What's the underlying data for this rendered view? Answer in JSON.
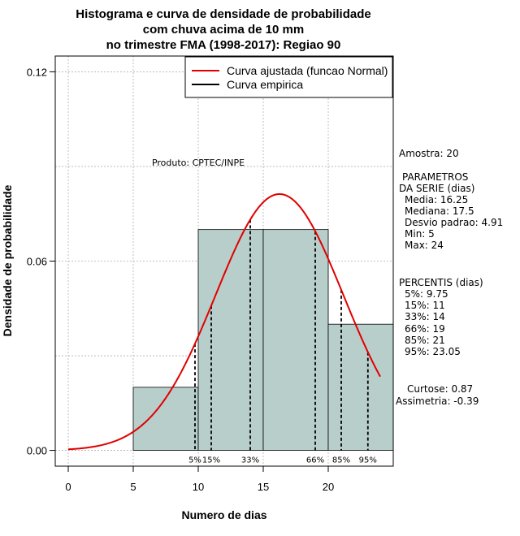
{
  "chart_data": {
    "type": "bar",
    "title_lines": [
      "Histograma e curva de densidade de probabilidade",
      "com chuva acima de 10 mm",
      "no trimestre FMA (1998-2017): Regiao 90"
    ],
    "xlabel": "Numero de dias",
    "ylabel": "Densidade de probabilidade",
    "xlim": [
      -1,
      25
    ],
    "ylim": [
      -0.005,
      0.125
    ],
    "x_ticks": [
      0,
      5,
      10,
      15,
      20
    ],
    "y_ticks": [
      0.0,
      0.06,
      0.12
    ],
    "y_tick_labels": [
      "0.00",
      "0.06",
      "0.12"
    ],
    "grid": true,
    "histogram": {
      "bins": [
        {
          "start": 5,
          "end": 10,
          "density": 0.02
        },
        {
          "start": 10,
          "end": 15,
          "density": 0.07
        },
        {
          "start": 15,
          "end": 20,
          "density": 0.07
        },
        {
          "start": 20,
          "end": 25,
          "density": 0.04
        }
      ],
      "color": "#b8cecb"
    },
    "normal_curve": {
      "name": "Curva ajustada (funcao Normal)",
      "mean": 16.25,
      "sd": 4.91,
      "x_range": [
        0,
        24
      ],
      "color": "#e00000"
    },
    "empirical_legend": "Curva empirica",
    "percentile_lines": [
      {
        "label": "5%",
        "x": 9.75
      },
      {
        "label": "15%",
        "x": 11
      },
      {
        "label": "33%",
        "x": 14
      },
      {
        "label": "66%",
        "x": 19
      },
      {
        "label": "85%",
        "x": 21
      },
      {
        "label": "95%",
        "x": 23.05
      }
    ],
    "annotation": "Produto: CPTEC/INPE"
  },
  "stats": {
    "amostra": "Amostra: 20",
    "parametros_title_1": "PARAMETROS",
    "parametros_title_2": "DA SERIE (dias)",
    "media": "Media: 16.25",
    "mediana": "Mediana: 17.5",
    "desvio": "Desvio padrao: 4.91",
    "min": "Min: 5",
    "max": "Max: 24",
    "percentis_title": "PERCENTIS (dias)",
    "p5": "5%: 9.75",
    "p15": "15%: 11",
    "p33": "33%: 14",
    "p66": "66%: 19",
    "p85": "85%: 21",
    "p95": "95%: 23.05",
    "curtose": "Curtose: 0.87",
    "assimetria": "Assimetria: -0.39"
  }
}
